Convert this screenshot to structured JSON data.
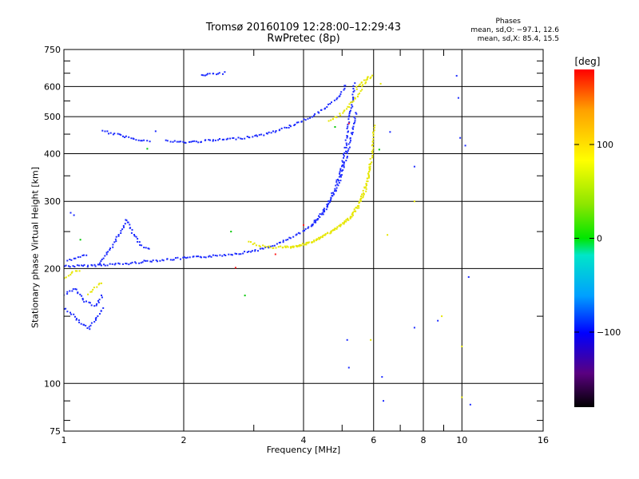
{
  "title_line1": "Tromsø 20160109 12:28:00–12:29:43",
  "title_line2": "RwPretec (8p)",
  "phase_header": "Phases",
  "phase_o": "mean, sd,O: −97.1, 12.6",
  "phase_x": "mean, sd,X:  85.4, 15.5",
  "chart_data": {
    "type": "scatter",
    "xlabel": "Frequency [MHz]",
    "ylabel": "Stationary phase Virtual Height [km]",
    "xscale": "log",
    "yscale": "log",
    "xlim": [
      1,
      16
    ],
    "ylim": [
      75,
      750
    ],
    "x_ticks": [
      1,
      2,
      4,
      6,
      8,
      10,
      16
    ],
    "x_tick_labels": [
      "1",
      "2",
      "4",
      "6",
      "8",
      "10",
      "16"
    ],
    "x_minor_ticks": [
      3,
      5,
      7,
      9
    ],
    "y_ticks": [
      75,
      100,
      200,
      300,
      400,
      500,
      600,
      750
    ],
    "y_tick_labels": [
      "75",
      "100",
      "200",
      "300",
      "400",
      "500",
      "600",
      "750"
    ],
    "grid": true,
    "colorbar": {
      "label": "[deg]",
      "range": [
        -180,
        180
      ],
      "ticks": [
        100,
        0,
        -100
      ],
      "tick_labels": [
        "100",
        "0",
        "−100"
      ],
      "colors": [
        "#000000",
        "#5a0080",
        "#0000ff",
        "#00b4ff",
        "#00e6c8",
        "#00e600",
        "#b4e600",
        "#ffff00",
        "#ffa000",
        "#ff0000"
      ]
    },
    "series": [
      {
        "mode": "O",
        "phase_deg": -100,
        "color": "#1c2bff",
        "traces": [
          [
            [
              1.0,
              204
            ],
            [
              1.1,
              204
            ],
            [
              1.2,
              205
            ],
            [
              1.3,
              206
            ],
            [
              1.45,
              207
            ],
            [
              1.6,
              210
            ],
            [
              1.8,
              212
            ],
            [
              2.0,
              214
            ],
            [
              2.4,
              217
            ],
            [
              2.8,
              221
            ],
            [
              3.2,
              227
            ],
            [
              3.6,
              238
            ],
            [
              4.0,
              252
            ],
            [
              4.3,
              270
            ],
            [
              4.6,
              298
            ],
            [
              4.8,
              330
            ],
            [
              5.0,
              380
            ],
            [
              5.1,
              430
            ],
            [
              5.2,
              500
            ],
            [
              5.3,
              560
            ],
            [
              5.35,
              620
            ]
          ],
          [
            [
              4.2,
              260
            ],
            [
              4.5,
              285
            ],
            [
              4.8,
              320
            ],
            [
              5.0,
              360
            ],
            [
              5.15,
              410
            ],
            [
              5.3,
              470
            ],
            [
              5.4,
              520
            ]
          ],
          [
            [
              1.22,
              205
            ],
            [
              1.3,
              225
            ],
            [
              1.38,
              250
            ],
            [
              1.43,
              270
            ],
            [
              1.48,
              250
            ],
            [
              1.55,
              232
            ],
            [
              1.65,
              224
            ]
          ],
          [
            [
              1.25,
              460
            ],
            [
              1.4,
              447
            ],
            [
              1.55,
              437
            ],
            [
              1.65,
              432
            ]
          ],
          [
            [
              1.8,
              434
            ],
            [
              2.0,
              430
            ],
            [
              2.4,
              436
            ],
            [
              2.8,
              442
            ],
            [
              3.2,
              452
            ],
            [
              3.6,
              470
            ],
            [
              4.0,
              492
            ],
            [
              4.4,
              520
            ],
            [
              4.8,
              555
            ],
            [
              5.0,
              590
            ],
            [
              5.1,
              615
            ]
          ],
          [
            [
              1.0,
              158
            ],
            [
              1.05,
              152
            ],
            [
              1.1,
              144
            ],
            [
              1.15,
              140
            ],
            [
              1.2,
              148
            ],
            [
              1.25,
              160
            ]
          ],
          [
            [
              1.0,
              172
            ],
            [
              1.06,
              178
            ],
            [
              1.12,
              165
            ],
            [
              1.2,
              160
            ],
            [
              1.25,
              172
            ]
          ],
          [
            [
              1.02,
              210
            ],
            [
              1.08,
              216
            ],
            [
              1.14,
              218
            ]
          ],
          [
            [
              2.2,
              645
            ],
            [
              2.4,
              650
            ],
            [
              2.55,
              655
            ]
          ]
        ],
        "isolated": [
          [
            1.04,
            280
          ],
          [
            1.06,
            276
          ],
          [
            1.7,
            458
          ],
          [
            5.15,
            130
          ],
          [
            5.2,
            110
          ],
          [
            6.3,
            104
          ],
          [
            6.35,
            90
          ],
          [
            6.6,
            456
          ],
          [
            7.6,
            370
          ],
          [
            7.6,
            140
          ],
          [
            8.7,
            146
          ],
          [
            9.7,
            640
          ],
          [
            9.8,
            560
          ],
          [
            9.9,
            440
          ],
          [
            10.2,
            420
          ],
          [
            10.4,
            190
          ],
          [
            10.5,
            88
          ]
        ]
      },
      {
        "mode": "X",
        "phase_deg": 85,
        "color": "#e6e600",
        "traces": [
          [
            [
              2.9,
              236
            ],
            [
              3.1,
              230
            ],
            [
              3.4,
              228
            ],
            [
              3.8,
              230
            ],
            [
              4.2,
              236
            ],
            [
              4.6,
              248
            ],
            [
              5.0,
              262
            ],
            [
              5.4,
              285
            ],
            [
              5.7,
              320
            ],
            [
              5.85,
              370
            ],
            [
              5.95,
              420
            ],
            [
              6.0,
              480
            ]
          ],
          [
            [
              3.6,
              228
            ],
            [
              4.0,
              232
            ],
            [
              4.4,
              242
            ],
            [
              4.8,
              256
            ],
            [
              5.2,
              272
            ],
            [
              5.5,
              298
            ],
            [
              5.75,
              340
            ],
            [
              5.9,
              380
            ]
          ],
          [
            [
              4.6,
              488
            ],
            [
              4.9,
              505
            ],
            [
              5.2,
              540
            ],
            [
              5.5,
              580
            ],
            [
              5.7,
              620
            ],
            [
              5.85,
              645
            ]
          ],
          [
            [
              5.4,
              595
            ],
            [
              5.55,
              615
            ],
            [
              5.7,
              630
            ],
            [
              5.9,
              640
            ],
            [
              6.0,
              650
            ]
          ],
          [
            [
              1.15,
              172
            ],
            [
              1.2,
              180
            ],
            [
              1.25,
              186
            ]
          ],
          [
            [
              1.0,
              190
            ],
            [
              1.05,
              196
            ],
            [
              1.1,
              200
            ]
          ]
        ],
        "isolated": [
          [
            6.25,
            610
          ],
          [
            6.5,
            245
          ],
          [
            7.6,
            300
          ],
          [
            8.9,
            150
          ],
          [
            10.0,
            125
          ],
          [
            10.0,
            92
          ],
          [
            5.9,
            130
          ]
        ]
      },
      {
        "mode": "other",
        "phase_deg": 0,
        "color": "#00c800",
        "traces": [],
        "isolated": [
          [
            1.62,
            412
          ],
          [
            2.63,
            250
          ],
          [
            2.85,
            170
          ],
          [
            4.8,
            470
          ],
          [
            1.1,
            238
          ],
          [
            6.2,
            410
          ]
        ]
      },
      {
        "mode": "other",
        "phase_deg": 180,
        "color": "#ff2020",
        "traces": [],
        "isolated": [
          [
            2.7,
            201
          ],
          [
            3.4,
            218
          ],
          [
            4.0,
            260
          ],
          [
            5.2,
            480
          ]
        ]
      }
    ]
  }
}
